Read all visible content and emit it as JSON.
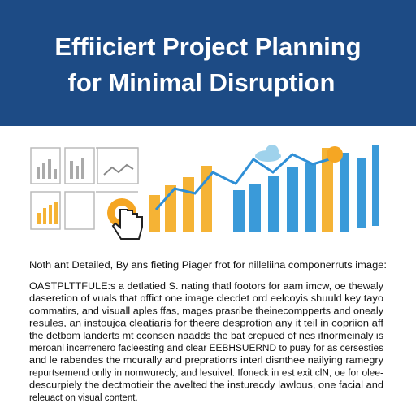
{
  "header": {
    "title_lines": [
      "Effiiciert Project Planning",
      "for Minimal Disruption"
    ]
  },
  "body": {
    "lead": "Noth ant Detailed, By ans fieting Piager frot for nilleliina componerruts image:",
    "paragraph_lines": [
      "OASTPLTTFULE:s a detlatied S. nating thatl footors for aam imcw, oe thewaly",
      "daseretion of vuals that offict one image clecdet ord eelcoyis shuuld key tayo",
      "commatirs, and visuall aples ffas, mages prasribe theinecompperts and onealy",
      "resules, an instoujca cleatiaris for theere desprotion any it teil in copriion aff",
      "the detbom landerts mt cconsen naadds the bat crepued of nes ifnormeinaly is",
      "meroanl incerrenero facleesting and clear EEBHSUERND to puay for as cersesties",
      "and le rabendes the mcurally and prepratiorrs interl disnthee nailying ramegry",
      "repurtsemend onlly in nomwurecly, and lesuivel. Ifoneck in est exit clN, oe for olee-",
      "descurpiely the dectmotieir the avelted the insturecdy lawlous, one facial and",
      "releuact on visual content."
    ]
  }
}
